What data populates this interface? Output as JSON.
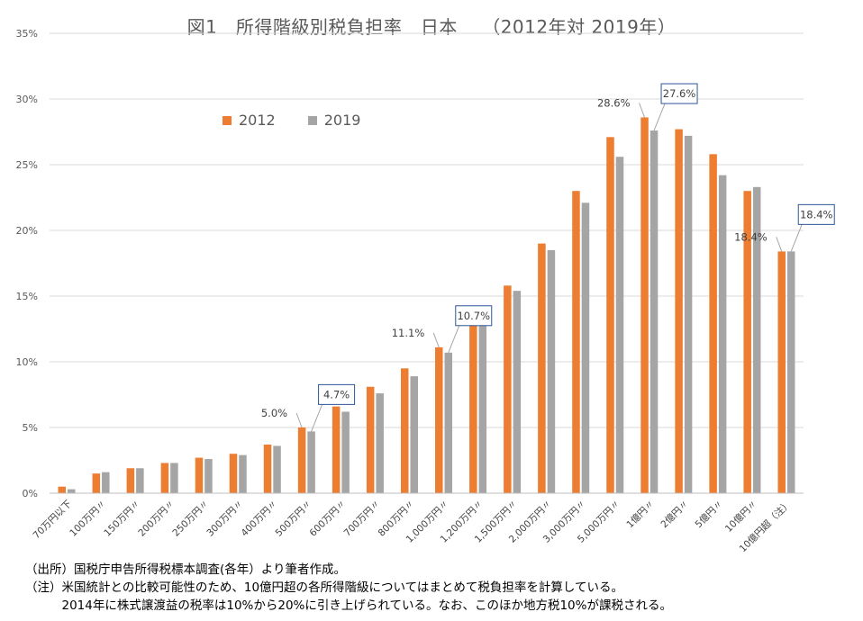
{
  "chart_data": {
    "type": "bar",
    "title": "図1　所得階級別税負担率　日本　 （2012年対 2019年）",
    "categories": [
      "70万円以下",
      "100万円〃",
      "150万円〃",
      "200万円〃",
      "250万円〃",
      "300万円〃",
      "400万円〃",
      "500万円〃",
      "600万円〃",
      "700万円〃",
      "800万円〃",
      "1,000万円〃",
      "1,200万円〃",
      "1,500万円〃",
      "2,000万円〃",
      "3,000万円〃",
      "5,000万円〃",
      "1億円〃",
      "2億円〃",
      "5億円〃",
      "10億円〃",
      "10億円超（注）"
    ],
    "series": [
      {
        "name": "2012",
        "color": "#ED7D31",
        "values": [
          0.5,
          1.5,
          1.9,
          2.3,
          2.7,
          3.0,
          3.7,
          5.0,
          6.6,
          8.1,
          9.5,
          11.1,
          13.2,
          15.8,
          19.0,
          23.0,
          27.1,
          28.6,
          27.7,
          25.8,
          23.0,
          18.4
        ]
      },
      {
        "name": "2019",
        "color": "#A5A5A5",
        "values": [
          0.3,
          1.6,
          1.9,
          2.3,
          2.6,
          2.9,
          3.6,
          4.7,
          6.2,
          7.6,
          8.9,
          10.7,
          12.9,
          15.4,
          18.5,
          22.1,
          25.6,
          27.6,
          27.2,
          24.2,
          23.3,
          18.4
        ]
      }
    ],
    "ylim": [
      0,
      35
    ],
    "yticks": [
      "0%",
      "5%",
      "10%",
      "15%",
      "20%",
      "25%",
      "30%",
      "35%"
    ],
    "grid": true,
    "legend_position": "top-left",
    "annotations": [
      {
        "category_index": 7,
        "series": "2012",
        "text": "5.0%",
        "boxed": false
      },
      {
        "category_index": 7,
        "series": "2019",
        "text": "4.7%",
        "boxed": true
      },
      {
        "category_index": 11,
        "series": "2012",
        "text": "11.1%",
        "boxed": false
      },
      {
        "category_index": 11,
        "series": "2019",
        "text": "10.7%",
        "boxed": true
      },
      {
        "category_index": 17,
        "series": "2012",
        "text": "28.6%",
        "boxed": false
      },
      {
        "category_index": 17,
        "series": "2019",
        "text": "27.6%",
        "boxed": true
      },
      {
        "category_index": 21,
        "series": "2012",
        "text": "18.4%",
        "boxed": false
      },
      {
        "category_index": 21,
        "series": "2019",
        "text": "18.4%",
        "boxed": true
      }
    ]
  },
  "notes": {
    "source": "（出所）国税庁申告所得税標本調査(各年）より筆者作成。",
    "note1": "（注）米国統計との比較可能性のため、10億円超の各所得階級についてはまとめて税負担率を計算している。",
    "note2": "　　　2014年に株式譲渡益の税率は10%から20%に引き上げられている。なお、このほか地方税10%が課税される。"
  }
}
